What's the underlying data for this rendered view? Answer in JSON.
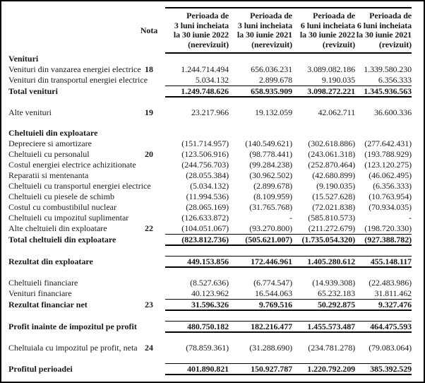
{
  "page": {
    "background": "#ffffff",
    "frame_color": "#000000",
    "text_color": "#1a1a1a",
    "rule_color": "#000000"
  },
  "table": {
    "nota_header": "Nota",
    "period_headers": [
      [
        "Perioada de",
        "3 luni incheiata",
        "la 30 iunie 2022",
        "(nerevizuit)"
      ],
      [
        "Perioada de",
        "3 luni incheiata",
        "la 30 iunie 2021",
        "(nerevizuit)"
      ],
      [
        "Perioada de",
        "6 luni incheiata",
        "la 30 iunie 2022",
        "(revizuit)"
      ],
      [
        "Perioada de",
        "6 luni incheiata",
        "la 30 iunie 2021",
        "(revizuit)"
      ]
    ],
    "rows": [
      {
        "type": "section",
        "label": "Venituri"
      },
      {
        "type": "data",
        "label": "Venituri din vanzarea energiei electrice",
        "nota": "18",
        "values": [
          "1.244.714.494",
          "656.036.231",
          "3.089.082.186",
          "1.339.580.230"
        ]
      },
      {
        "type": "data",
        "label": "Venituri din transportul energiei electrice",
        "nota": "",
        "values": [
          "5.034.132",
          "2.899.678",
          "9.190.035",
          "6.356.333"
        ]
      },
      {
        "type": "total",
        "label": "Total venituri",
        "nota": "",
        "values": [
          "1.249.748.626",
          "658.935.909",
          "3.098.272.221",
          "1.345.936.563"
        ]
      },
      {
        "type": "spacer"
      },
      {
        "type": "data",
        "label": "Alte venituri",
        "nota": "19",
        "values": [
          "23.217.966",
          "19.132.059",
          "42.062.711",
          "36.600.336"
        ]
      },
      {
        "type": "spacer"
      },
      {
        "type": "section",
        "label": "Cheltuieli din exploatare"
      },
      {
        "type": "data",
        "label": "Depreciere si amortizare",
        "nota": "",
        "values": [
          "(151.714.957)",
          "(140.549.621)",
          "(302.618.886)",
          "(277.642.431)"
        ]
      },
      {
        "type": "data",
        "label": "Cheltuieli cu personalul",
        "nota": "20",
        "values": [
          "(123.506.916)",
          "(98.778.441)",
          "(243.061.318)",
          "(193.788.929)"
        ]
      },
      {
        "type": "data",
        "label": "Costul energiei electrice achizitionate",
        "nota": "",
        "values": [
          "(244.756.703)",
          "(99.284.238)",
          "(252.870.464)",
          "(123.120.275)"
        ]
      },
      {
        "type": "data",
        "label": "Reparatii si mentenanta",
        "nota": "",
        "values": [
          "(28.055.384)",
          "(30.962.502)",
          "(42.680.899)",
          "(46.062.495)"
        ]
      },
      {
        "type": "data",
        "label": "Cheltuieli cu transportul energiei electrice",
        "nota": "",
        "values": [
          "(5.034.132)",
          "(2.899.678)",
          "(9.190.035)",
          "(6.356.333)"
        ]
      },
      {
        "type": "data",
        "label": "Cheltuieli cu piesele de schimb",
        "nota": "",
        "values": [
          "(11.994.536)",
          "(8.109.959)",
          "(15.527.628)",
          "(10.763.954)"
        ]
      },
      {
        "type": "data",
        "label": "Costul cu combustibilul nuclear",
        "nota": "",
        "values": [
          "(28.065.169)",
          "(31.765.768)",
          "(72.021.838)",
          "(70.934.035)"
        ]
      },
      {
        "type": "data",
        "label": "Cheltuieli cu impozitul suplimentar",
        "nota": "",
        "values": [
          "(126.633.872)",
          "-",
          "(585.810.573)",
          "-"
        ]
      },
      {
        "type": "data",
        "label": "Alte cheltuieli din exploatare",
        "nota": "22",
        "values": [
          "(104.051.067)",
          "(93.270.800)",
          "(211.272.679)",
          "(198.720.330)"
        ]
      },
      {
        "type": "total",
        "label": "Total cheltuieli din exploatare",
        "nota": "",
        "values": [
          "(823.812.736)",
          "(505.621.007)",
          "(1.735.054.320)",
          "(927.388.782)"
        ]
      },
      {
        "type": "spacer"
      },
      {
        "type": "total",
        "label": "Rezultat din exploatare",
        "nota": "",
        "values": [
          "449.153.856",
          "172.446.961",
          "1.405.280.612",
          "455.148.117"
        ]
      },
      {
        "type": "spacer"
      },
      {
        "type": "data",
        "label": "Cheltuieli financiare",
        "nota": "",
        "values": [
          "(8.527.636)",
          "(6.774.547)",
          "(14.939.308)",
          "(22.483.986)"
        ]
      },
      {
        "type": "data",
        "label": "Venituri financiare",
        "nota": "",
        "values": [
          "40.123.962",
          "16.544.063",
          "65.232.183",
          "31.811.462"
        ]
      },
      {
        "type": "total",
        "label": "Rezultat financiar net",
        "nota": "23",
        "values": [
          "31.596.326",
          "9.769.516",
          "50.292.875",
          "9.327.476"
        ]
      },
      {
        "type": "spacer"
      },
      {
        "type": "total",
        "label": "Profit inainte de impozitul pe profit",
        "nota": "",
        "values": [
          "480.750.182",
          "182.216.477",
          "1.455.573.487",
          "464.475.593"
        ]
      },
      {
        "type": "spacer"
      },
      {
        "type": "data",
        "label": "Cheltuiala cu impozitul pe profit, neta",
        "nota": "24",
        "values": [
          "(78.859.361)",
          "(31.288.690)",
          "(234.781.278)",
          "(79.083.064)"
        ]
      },
      {
        "type": "spacer"
      },
      {
        "type": "total",
        "label": "Profitul perioadei",
        "nota": "",
        "values": [
          "401.890.821",
          "150.927.787",
          "1.220.792.209",
          "385.392.529"
        ]
      }
    ]
  }
}
